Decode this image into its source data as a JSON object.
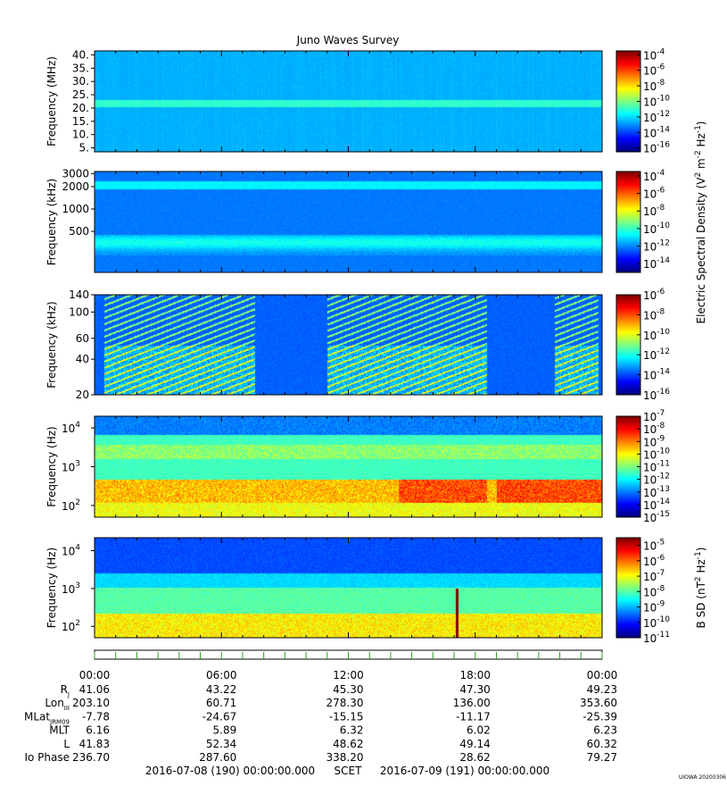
{
  "title": "Juno Waves Survey",
  "credit": "UIOWA 20200306",
  "colors": {
    "ink": "#000000",
    "background": "#ffffff"
  },
  "panels": [
    {
      "ylabel": "Frequency (MHz)",
      "yticks": [
        "40.",
        "35.",
        "30.",
        "25.",
        "20.",
        "15.",
        "10.",
        "5."
      ],
      "ytick_values": [
        40,
        35,
        30,
        25,
        20,
        15,
        10,
        5
      ],
      "yrange": [
        3.5,
        41.5
      ],
      "yscale": "linear",
      "cb_ticks": [
        {
          "mant": "10",
          "exp": "-4"
        },
        {
          "mant": "10",
          "exp": "-6"
        },
        {
          "mant": "10",
          "exp": "-8"
        },
        {
          "mant": "10",
          "exp": "-10"
        },
        {
          "mant": "10",
          "exp": "-12"
        },
        {
          "mant": "10",
          "exp": "-14"
        },
        {
          "mant": "10",
          "exp": "-16"
        }
      ],
      "cb_range": [
        -16.5,
        -3.5
      ]
    },
    {
      "ylabel": "Frequency (kHz)",
      "yticks": [
        "3000",
        "2000",
        "1000",
        "500"
      ],
      "ytick_values": [
        3000,
        2000,
        1000,
        500
      ],
      "yrange": [
        140,
        3200
      ],
      "yscale": "log",
      "cb_ticks": [
        {
          "mant": "10",
          "exp": "-4"
        },
        {
          "mant": "10",
          "exp": "-6"
        },
        {
          "mant": "10",
          "exp": "-8"
        },
        {
          "mant": "10",
          "exp": "-10"
        },
        {
          "mant": "10",
          "exp": "-12"
        },
        {
          "mant": "10",
          "exp": "-14"
        }
      ],
      "cb_range": [
        -15,
        -3.5
      ]
    },
    {
      "ylabel": "Frequency (kHz)",
      "yticks": [
        "140",
        "100",
        "60",
        "40",
        "20"
      ],
      "ytick_values": [
        140,
        100,
        60,
        40,
        20
      ],
      "yrange": [
        20,
        140
      ],
      "yscale": "log",
      "cb_ticks": [
        {
          "mant": "10",
          "exp": "-6"
        },
        {
          "mant": "10",
          "exp": "-8"
        },
        {
          "mant": "10",
          "exp": "-10"
        },
        {
          "mant": "10",
          "exp": "-12"
        },
        {
          "mant": "10",
          "exp": "-14"
        },
        {
          "mant": "10",
          "exp": "-16"
        }
      ],
      "cb_range": [
        -16,
        -6
      ]
    },
    {
      "ylabel": "Frequency (Hz)",
      "yticks": [
        {
          "mant": "10",
          "exp": "4"
        },
        {
          "mant": "10",
          "exp": "3"
        },
        {
          "mant": "10",
          "exp": "2"
        }
      ],
      "ytick_values": [
        10000,
        1000,
        100
      ],
      "yrange": [
        50,
        20000
      ],
      "yscale": "log",
      "cb_ticks": [
        {
          "mant": "10",
          "exp": "-7"
        },
        {
          "mant": "10",
          "exp": "-8"
        },
        {
          "mant": "10",
          "exp": "-9"
        },
        {
          "mant": "10",
          "exp": "-10"
        },
        {
          "mant": "10",
          "exp": "-11"
        },
        {
          "mant": "10",
          "exp": "-12"
        },
        {
          "mant": "10",
          "exp": "-13"
        },
        {
          "mant": "10",
          "exp": "-14"
        },
        {
          "mant": "10",
          "exp": "-15"
        }
      ],
      "cb_range": [
        -15,
        -7
      ]
    },
    {
      "ylabel": "Frequency (Hz)",
      "yticks": [
        {
          "mant": "10",
          "exp": "4"
        },
        {
          "mant": "10",
          "exp": "3"
        },
        {
          "mant": "10",
          "exp": "2"
        }
      ],
      "ytick_values": [
        10000,
        1000,
        100
      ],
      "yrange": [
        50,
        22000
      ],
      "yscale": "log",
      "cb_ticks": [
        {
          "mant": "10",
          "exp": "-5"
        },
        {
          "mant": "10",
          "exp": "-6"
        },
        {
          "mant": "10",
          "exp": "-7"
        },
        {
          "mant": "10",
          "exp": "-8"
        },
        {
          "mant": "10",
          "exp": "-9"
        },
        {
          "mant": "10",
          "exp": "-10"
        },
        {
          "mant": "10",
          "exp": "-11"
        }
      ],
      "cb_range": [
        -11,
        -4.5
      ]
    }
  ],
  "cblabel_e": {
    "main": "Electric Spectral Density (V",
    "parts": [
      "2",
      " m",
      "-2",
      " Hz",
      "-1",
      ")"
    ]
  },
  "cblabel_b": {
    "main": "B SD (nT",
    "parts": [
      "2",
      " Hz",
      "-1",
      ")"
    ]
  },
  "time_ticks": [
    "00:00",
    "06:00",
    "12:00",
    "18:00",
    "00:00"
  ],
  "time_tick_hours": [
    0,
    6,
    12,
    18,
    24
  ],
  "ephemeris": [
    {
      "label": "R",
      "sub": "J",
      "values": [
        "41.06",
        "43.22",
        "45.30",
        "47.30",
        "49.23"
      ]
    },
    {
      "label": "Lon",
      "sub": "III",
      "values": [
        "203.10",
        "60.71",
        "278.30",
        "136.00",
        "353.60"
      ]
    },
    {
      "label": "MLat",
      "sub": "JRM09",
      "values": [
        "-7.78",
        "-24.67",
        "-15.15",
        "-11.17",
        "-25.39"
      ]
    },
    {
      "label": "MLT",
      "sub": "",
      "values": [
        "6.16",
        "5.89",
        "6.32",
        "6.02",
        "6.23"
      ]
    },
    {
      "label": "L",
      "sub": "",
      "values": [
        "41.83",
        "52.34",
        "48.62",
        "49.14",
        "60.32"
      ]
    },
    {
      "label": "Io Phase",
      "sub": "",
      "values": [
        "236.70",
        "287.60",
        "338.20",
        "28.62",
        "79.27"
      ]
    }
  ],
  "footer": {
    "start": "2016-07-08 (190) 00:00:00.000",
    "scet": "SCET",
    "end": "2016-07-09 (191) 00:00:00.000"
  },
  "chart_data": [
    {
      "type": "heatmap",
      "ylabel": "Frequency (MHz)",
      "x": [
        0,
        24
      ],
      "ylim": [
        3.5,
        41.5
      ],
      "colorbar": "Electric Spectral Density (V2 m-2 Hz-1)",
      "clim_log10": [
        -16.5,
        -3.5
      ],
      "features": "band near 21 MHz",
      "background_log10": -12.6
    },
    {
      "type": "heatmap",
      "ylabel": "Frequency (kHz)",
      "x": [
        0,
        24
      ],
      "ylim": [
        140,
        3200
      ],
      "colorbar": "Electric Spectral Density (V2 m-2 Hz-1)",
      "clim_log10": [
        -15,
        -3.5
      ],
      "features": "bands near 2000 kHz and 350 kHz",
      "background_log10": -12.2
    },
    {
      "type": "heatmap",
      "ylabel": "Frequency (kHz)",
      "x": [
        0,
        24
      ],
      "ylim": [
        20,
        140
      ],
      "colorbar": "Electric Spectral Density (V2 m-2 Hz-1)",
      "clim_log10": [
        -16,
        -6
      ],
      "features": "bursty striated emissions",
      "background_log10": -13.8
    },
    {
      "type": "heatmap",
      "ylabel": "Frequency (Hz)",
      "x": [
        0,
        24
      ],
      "ylim": [
        50,
        20000
      ],
      "colorbar": "Electric Spectral Density (V2 m-2 Hz-1)",
      "clim_log10": [
        -15,
        -7
      ],
      "features": "intense band near 300 Hz",
      "background_log10": -11.5
    },
    {
      "type": "heatmap",
      "ylabel": "Frequency (Hz)",
      "x": [
        0,
        24
      ],
      "ylim": [
        50,
        22000
      ],
      "colorbar": "B SD (nT2 Hz-1)",
      "clim_log10": [
        -11,
        -4.5
      ],
      "features": "low frequency enhancement",
      "background_log10": -8
    }
  ]
}
